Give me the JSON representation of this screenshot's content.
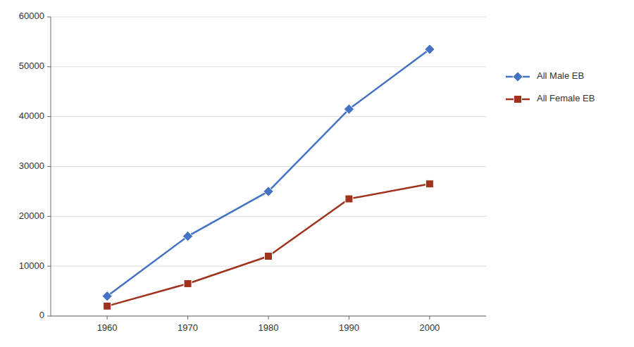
{
  "chart_data": {
    "type": "line",
    "x": [
      1960,
      1970,
      1980,
      1990,
      2000
    ],
    "series": [
      {
        "name": "All Male EB",
        "color": "#4472C4",
        "marker": "diamond",
        "values": [
          4000,
          16000,
          25000,
          41500,
          53500
        ]
      },
      {
        "name": "All Female EB",
        "color": "#A0321E",
        "marker": "square",
        "values": [
          2000,
          6500,
          12000,
          23500,
          26500
        ]
      }
    ],
    "xlim": [
      1953,
      2007
    ],
    "xticks": [
      1960,
      1970,
      1980,
      1990,
      2000
    ],
    "ylim": [
      0,
      60000
    ],
    "yticks": [
      0,
      10000,
      20000,
      30000,
      40000,
      50000,
      60000
    ],
    "grid": true,
    "legend": "right"
  }
}
